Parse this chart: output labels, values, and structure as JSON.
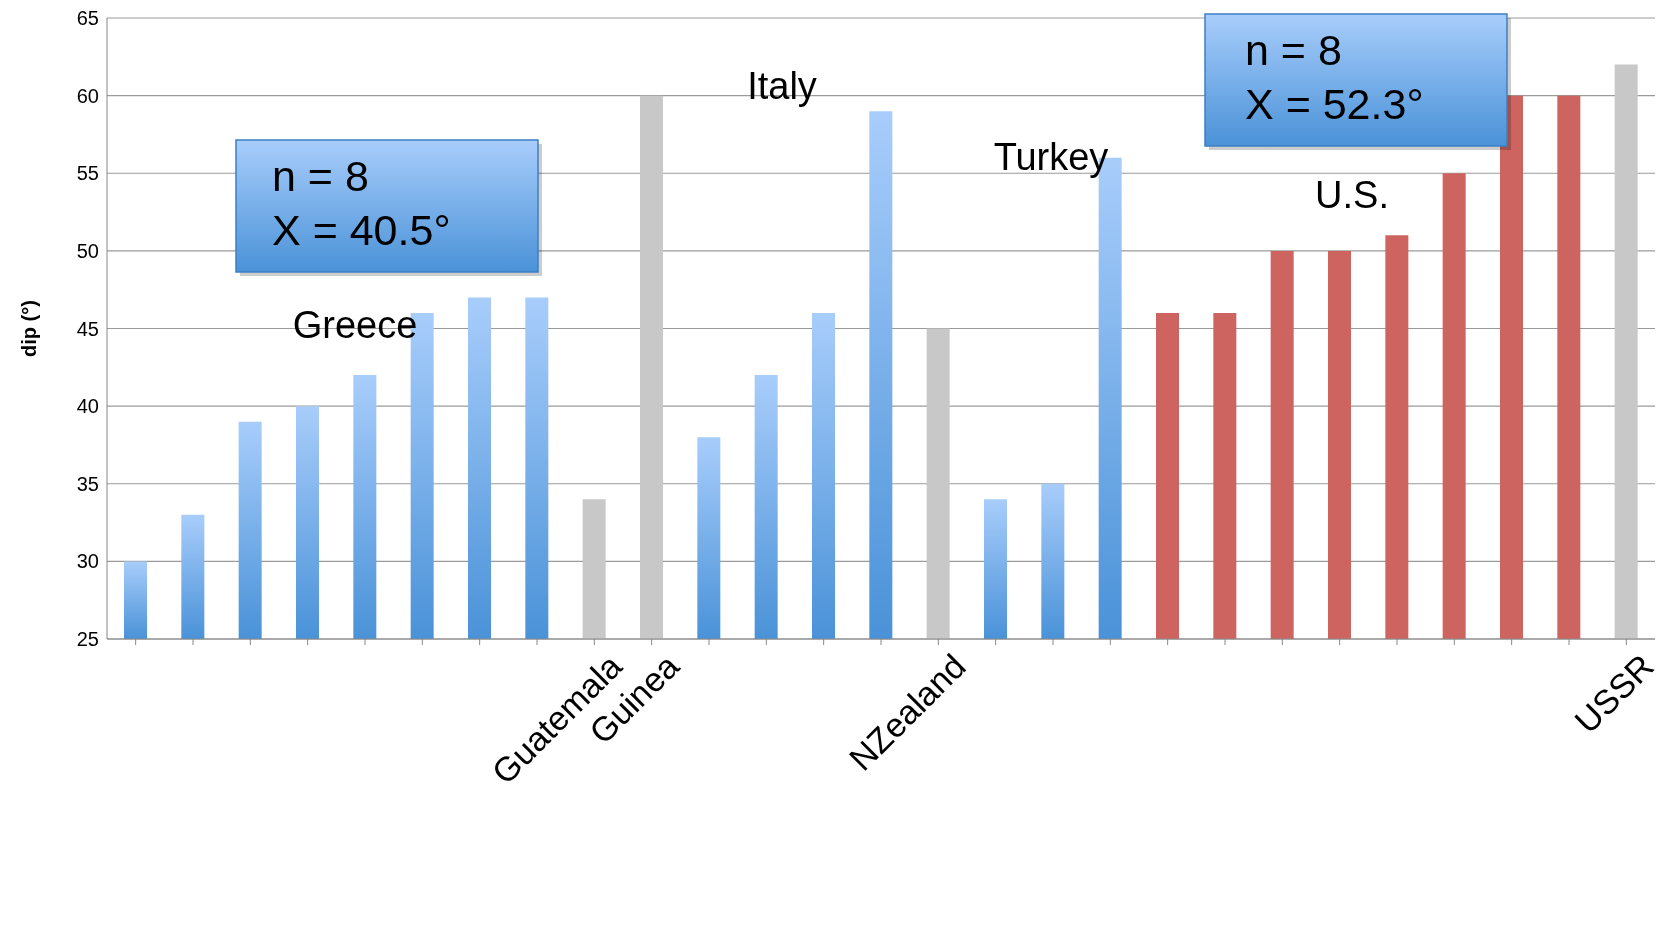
{
  "chart_data": {
    "type": "bar",
    "ylabel": "dip (°)",
    "categories": [
      null,
      null,
      null,
      null,
      null,
      null,
      null,
      null,
      "Guatemala",
      "Guinea",
      null,
      null,
      null,
      null,
      "NZealand",
      null,
      null,
      null,
      null,
      null,
      null,
      null,
      null,
      null,
      null,
      null,
      "USSR"
    ],
    "values": [
      30,
      33,
      39,
      40,
      42,
      46,
      47,
      47,
      34,
      60,
      38,
      42,
      46,
      59,
      45,
      34,
      35,
      56,
      46,
      46,
      50,
      50,
      51,
      55,
      60,
      60,
      62
    ],
    "colors": [
      "#7ab2ee",
      "#7ab2ee",
      "#7ab2ee",
      "#7ab2ee",
      "#7ab2ee",
      "#7ab2ee",
      "#7ab2ee",
      "#7ab2ee",
      "#c8c8c8",
      "#c8c8c8",
      "#7ab2ee",
      "#7ab2ee",
      "#7ab2ee",
      "#7ab2ee",
      "#c8c8c8",
      "#7ab2ee",
      "#7ab2ee",
      "#7ab2ee",
      "#cd6460",
      "#cd6460",
      "#cd6460",
      "#cd6460",
      "#cd6460",
      "#cd6460",
      "#cd6460",
      "#cd6460",
      "#c8c8c8"
    ],
    "ylim": [
      25,
      65
    ],
    "yticks": [
      25,
      30,
      35,
      40,
      45,
      50,
      55,
      60,
      65
    ],
    "grid": "y",
    "annotations": [
      "Greece",
      "Italy",
      "Turkey",
      "U.S.",
      "n = 8",
      "X = 40.5°",
      "n = 8",
      "X = 52.3°"
    ]
  }
}
